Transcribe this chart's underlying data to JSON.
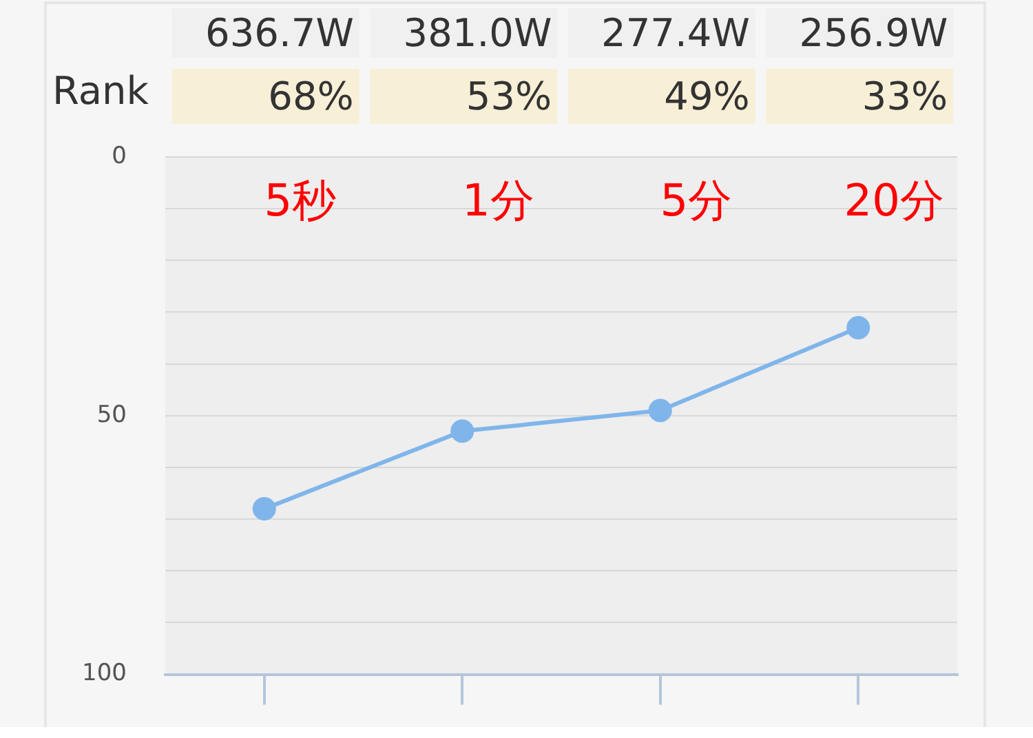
{
  "chart_data": {
    "type": "line",
    "categories": [
      "5秒",
      "1分",
      "5分",
      "20分"
    ],
    "series": [
      {
        "color": "#7fb5ea",
        "values": [
          68,
          53,
          49,
          33
        ]
      }
    ],
    "annotations": [
      "Rank",
      "636.7W",
      "381.0W",
      "277.4W",
      "256.9W",
      "68%",
      "53%",
      "49%",
      "33%"
    ],
    "ylim": [
      100,
      0
    ],
    "yticks": [
      0,
      {
        "value": 10,
        "label": null
      },
      {
        "value": 20,
        "label": null
      },
      {
        "value": 30,
        "label": null
      },
      {
        "value": 40,
        "label": null
      },
      50,
      {
        "value": 60,
        "label": null
      },
      {
        "value": 70,
        "label": null
      },
      {
        "value": 80,
        "label": null
      },
      {
        "value": 90,
        "label": null
      },
      100
    ],
    "grid": "y",
    "marker": "circle",
    "line_style": "solid",
    "legend": false
  }
}
